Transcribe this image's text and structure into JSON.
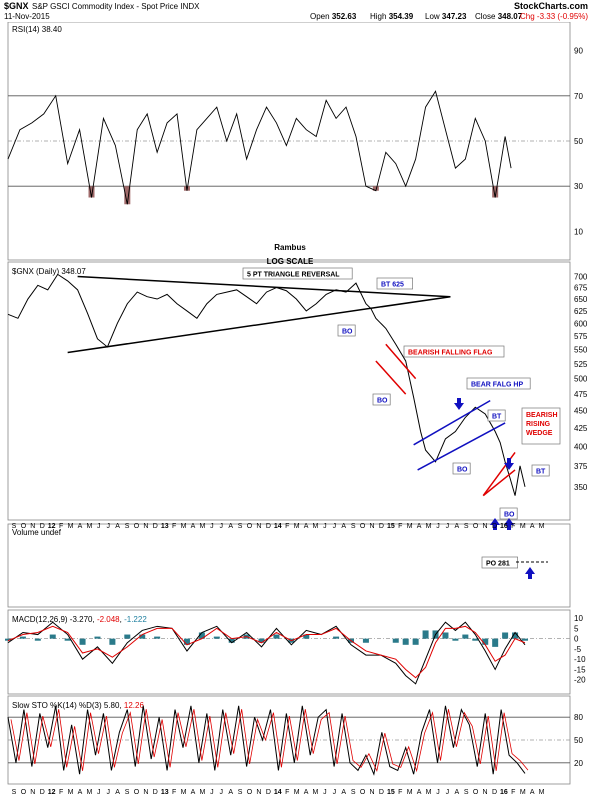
{
  "header": {
    "symbol": "$GNX",
    "name": "S&P GSCI Commodity Index - Spot Price",
    "exchange": "INDX",
    "date": "11-Nov-2015",
    "open_label": "Open",
    "open": "352.63",
    "high_label": "High",
    "high": "354.39",
    "low_label": "Low",
    "low": "347.23",
    "close_label": "Close",
    "close": "348.07",
    "chg_label": "Chg",
    "chg": "-3.33 (-0.95%)",
    "logo": "StockCharts.com"
  },
  "colors": {
    "up": "#008000",
    "down": "#e00000",
    "blue": "#1010c0",
    "red": "#e00000",
    "oversold_fill": "#a06a6a",
    "macd_hist": "#2a7a8a"
  },
  "chart_data": [
    {
      "type": "line",
      "name": "RSI(14) 38.40",
      "label": "RSI(14) 38.40",
      "ylim": [
        0,
        100
      ],
      "y_ticks": [
        10,
        30,
        50,
        70,
        90
      ],
      "hlines": [
        70,
        50,
        30
      ],
      "x": [
        0,
        12,
        24,
        36,
        48,
        60,
        72,
        84,
        96,
        108,
        120,
        130,
        140,
        150,
        160,
        170,
        180,
        190,
        200,
        210,
        220,
        230,
        240,
        250,
        260,
        270,
        280,
        290,
        300,
        310,
        320,
        330,
        340,
        350,
        360,
        370,
        380,
        390,
        400,
        410,
        420,
        430,
        440,
        450,
        460,
        470,
        480,
        490,
        500,
        506
      ],
      "values": [
        42,
        55,
        58,
        62,
        70,
        40,
        55,
        25,
        60,
        48,
        22,
        55,
        62,
        45,
        58,
        62,
        28,
        55,
        60,
        65,
        50,
        62,
        42,
        55,
        65,
        58,
        48,
        60,
        55,
        52,
        68,
        60,
        65,
        52,
        30,
        28,
        45,
        40,
        30,
        42,
        65,
        72,
        55,
        38,
        42,
        60,
        50,
        25,
        52,
        38
      ]
    },
    {
      "type": "line",
      "name": "$GNX (Daily) 348.07",
      "label": "$GNX (Daily) 348.07",
      "scale": "log",
      "ylim": [
        320,
        720
      ],
      "y_ticks": [
        350,
        375,
        400,
        425,
        450,
        475,
        500,
        525,
        550,
        575,
        600,
        625,
        650,
        675,
        700
      ],
      "x": [
        0,
        10,
        20,
        30,
        40,
        50,
        60,
        70,
        80,
        90,
        100,
        110,
        120,
        130,
        140,
        150,
        160,
        170,
        180,
        190,
        200,
        210,
        220,
        230,
        240,
        250,
        260,
        270,
        280,
        290,
        300,
        310,
        320,
        330,
        340,
        350,
        360,
        365,
        370,
        380,
        390,
        400,
        408,
        415,
        420,
        430,
        440,
        450,
        460,
        470,
        480,
        490,
        495,
        500,
        505,
        510,
        515,
        520
      ],
      "values": [
        618,
        610,
        650,
        680,
        670,
        705,
        690,
        670,
        620,
        570,
        555,
        600,
        640,
        665,
        655,
        650,
        660,
        640,
        625,
        610,
        640,
        660,
        665,
        670,
        655,
        640,
        665,
        675,
        668,
        650,
        625,
        640,
        660,
        670,
        665,
        685,
        640,
        630,
        610,
        590,
        560,
        530,
        470,
        420,
        395,
        380,
        410,
        420,
        440,
        455,
        445,
        420,
        405,
        380,
        360,
        340,
        375,
        350
      ]
    },
    {
      "type": "area",
      "name": "Volume undef",
      "label": "Volume undef",
      "values": []
    },
    {
      "type": "line",
      "name": "MACD(12,26,9)",
      "label": "MACD(12,26,9)",
      "macd_value": "-3.270",
      "signal_value": "-2.048",
      "hist_value": "-1.222",
      "ylim": [
        -25,
        12
      ],
      "y_ticks": [
        10,
        5,
        0,
        -5,
        -10,
        -15,
        -20
      ],
      "x": [
        0,
        15,
        30,
        45,
        60,
        75,
        90,
        105,
        120,
        135,
        150,
        165,
        180,
        195,
        210,
        225,
        240,
        255,
        270,
        285,
        300,
        315,
        330,
        345,
        360,
        375,
        390,
        400,
        410,
        420,
        430,
        440,
        450,
        460,
        470,
        480,
        490,
        500,
        510,
        520
      ],
      "values": [
        -2,
        3,
        2,
        8,
        2,
        -10,
        -4,
        -12,
        -2,
        4,
        6,
        5,
        -6,
        3,
        6,
        -2,
        3,
        -4,
        5,
        -3,
        4,
        2,
        6,
        -3,
        -8,
        -8,
        -12,
        -18,
        -22,
        -10,
        2,
        8,
        4,
        8,
        2,
        -6,
        -15,
        -5,
        3,
        -3
      ],
      "signal": [
        -1,
        2,
        3,
        6,
        3,
        -7,
        -5,
        -9,
        -4,
        2,
        5,
        5,
        -3,
        0,
        5,
        0,
        1,
        -2,
        3,
        -1,
        2,
        2,
        5,
        -1,
        -6,
        -8,
        -10,
        -15,
        -19,
        -14,
        -2,
        5,
        5,
        6,
        3,
        -3,
        -11,
        -8,
        0,
        -2
      ]
    },
    {
      "type": "line",
      "name": "Slow STO %K(14) %D(3)",
      "label": "Slow STO %K(14) %D(3)",
      "k_value": "5.80",
      "d_value": "12.26",
      "ylim": [
        0,
        100
      ],
      "y_ticks": [
        80,
        50,
        20
      ],
      "hlines": [
        80,
        20
      ],
      "x": [
        0,
        8,
        16,
        24,
        32,
        40,
        48,
        56,
        64,
        72,
        80,
        88,
        96,
        104,
        112,
        120,
        128,
        136,
        144,
        152,
        160,
        168,
        176,
        184,
        192,
        200,
        208,
        216,
        224,
        232,
        240,
        248,
        256,
        264,
        272,
        280,
        288,
        296,
        304,
        312,
        320,
        328,
        336,
        344,
        352,
        360,
        368,
        376,
        384,
        392,
        400,
        408,
        416,
        424,
        432,
        440,
        448,
        456,
        464,
        472,
        480,
        488,
        496,
        504,
        512,
        520
      ],
      "values": [
        80,
        20,
        90,
        15,
        85,
        40,
        95,
        10,
        70,
        5,
        90,
        30,
        85,
        10,
        60,
        90,
        15,
        95,
        25,
        80,
        10,
        90,
        40,
        95,
        20,
        85,
        10,
        90,
        30,
        95,
        15,
        80,
        50,
        90,
        10,
        85,
        20,
        95,
        30,
        80,
        90,
        15,
        85,
        20,
        10,
        30,
        5,
        60,
        15,
        10,
        40,
        5,
        60,
        90,
        20,
        95,
        40,
        90,
        70,
        15,
        85,
        5,
        90,
        30,
        20,
        6
      ]
    }
  ],
  "x_axis": {
    "ticks": [
      "S",
      "O",
      "N",
      "D",
      "12",
      "F",
      "M",
      "A",
      "M",
      "J",
      "J",
      "A",
      "S",
      "O",
      "N",
      "D",
      "13",
      "F",
      "M",
      "A",
      "M",
      "J",
      "J",
      "A",
      "S",
      "O",
      "N",
      "D",
      "14",
      "F",
      "M",
      "A",
      "M",
      "J",
      "J",
      "A",
      "S",
      "O",
      "N",
      "D",
      "15",
      "F",
      "M",
      "A",
      "M",
      "J",
      "J",
      "A",
      "S",
      "O",
      "N",
      "D",
      "16",
      "F",
      "M",
      "A",
      "M"
    ],
    "bold_ticks": [
      "12",
      "13",
      "14",
      "15",
      "16"
    ]
  },
  "annotations": {
    "author": "Rambus",
    "log_scale": "LOG SCALE",
    "triangle_label": "5 PT TRIANGLE REVERSAL",
    "bt_625": "BT 625",
    "bo_1": "BO",
    "bearish_falling_flag": "BEARISH FALLING FLAG",
    "bo_2": "BO",
    "bear_flag_hp": "BEAR FALG HP",
    "bt_2": "BT",
    "bo_3": "BO",
    "bearish_rising_wedge_1": "BEARISH",
    "bearish_rising_wedge_2": "RISING",
    "bearish_rising_wedge_3": "WEDGE",
    "bt_3": "BT",
    "bo_4": "BO",
    "po_281": "PO 281"
  }
}
